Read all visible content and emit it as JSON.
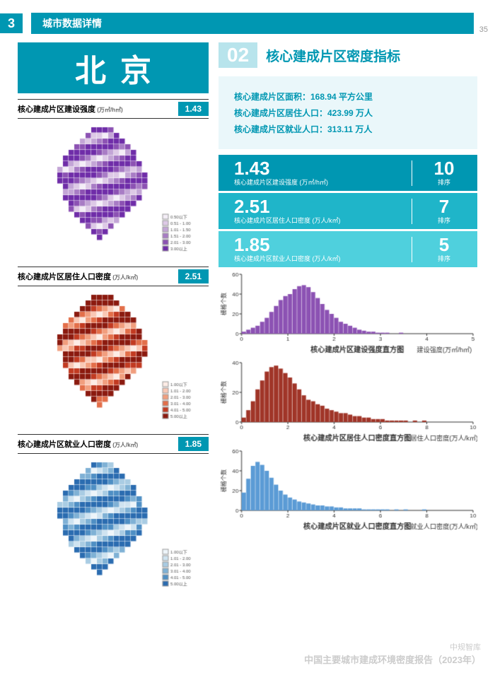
{
  "pageNumber": "35",
  "header": {
    "badge": "3",
    "title": "城市数据详情"
  },
  "cityName": "北京",
  "section": {
    "num": "02",
    "title": "核心建成片区密度指标"
  },
  "maps": [
    {
      "title": "核心建成片区建设强度",
      "unit": "(万㎡/h㎡)",
      "value": "1.43",
      "scheme": "purple",
      "legend": [
        "0.50以下",
        "0.51 - 1.00",
        "1.01 - 1.50",
        "1.51 - 2.00",
        "2.01 - 3.00",
        "3.00以上"
      ],
      "colors": [
        "#f4eef7",
        "#ddc9e6",
        "#c3a5d6",
        "#a87cc5",
        "#8c52b3",
        "#6f2da8"
      ]
    },
    {
      "title": "核心建成片区居住人口密度",
      "unit": "(万人/k㎡)",
      "value": "2.51",
      "scheme": "red",
      "legend": [
        "1.00以下",
        "1.01 - 2.00",
        "2.01 - 3.00",
        "3.01 - 4.00",
        "4.01 - 5.00",
        "5.00以上"
      ],
      "colors": [
        "#fdece5",
        "#f9c8b5",
        "#f19e7e",
        "#e36f4a",
        "#c23b22",
        "#8b1a0f"
      ]
    },
    {
      "title": "核心建成片区就业人口密度",
      "unit": "(万人/k㎡)",
      "value": "1.85",
      "scheme": "blue",
      "legend": [
        "1.00以下",
        "1.01 - 2.00",
        "2.01 - 3.00",
        "3.01 - 4.00",
        "4.01 - 5.00",
        "5.00以上"
      ],
      "colors": [
        "#eef5fa",
        "#cfe3f0",
        "#a9cce3",
        "#7fb1d5",
        "#4f8fc4",
        "#2b6cb0"
      ]
    }
  ],
  "stats": [
    "核心建成片区面积：168.94 平方公里",
    "核心建成片区居住人口：423.99 万人",
    "核心建成片区就业人口：313.11 万人"
  ],
  "metrics": [
    {
      "value": "1.43",
      "label": "核心建成片区建设强度 (万㎡/h㎡)",
      "rank": "10",
      "rankLabel": "排序"
    },
    {
      "value": "2.51",
      "label": "核心建成片区居住人口密度 (万人/k㎡)",
      "rank": "7",
      "rankLabel": "排序"
    },
    {
      "value": "1.85",
      "label": "核心建成片区就业人口密度 (万人/k㎡)",
      "rank": "5",
      "rankLabel": "排序"
    }
  ],
  "histograms": [
    {
      "title": "核心建成片区建设强度直方图",
      "xlabel": "建设强度(万㎡/h㎡)",
      "ylabel": "栅格个数",
      "color": "#8c52b3",
      "xmax": 5,
      "ymax": 60,
      "xticks": [
        0,
        1,
        2,
        3,
        4,
        5
      ],
      "yticks": [
        0,
        20,
        40,
        60
      ],
      "binW": 0.1,
      "bins": [
        2,
        4,
        6,
        8,
        12,
        16,
        22,
        28,
        34,
        38,
        40,
        45,
        48,
        49,
        47,
        42,
        36,
        30,
        24,
        20,
        16,
        12,
        10,
        8,
        6,
        4,
        3,
        2,
        2,
        1,
        1,
        1,
        0,
        0,
        1,
        0,
        0,
        0,
        0,
        0,
        0,
        0,
        0,
        0,
        0,
        0,
        0,
        0,
        0,
        0
      ]
    },
    {
      "title": "核心建成片区居住人口密度直方图",
      "xlabel": "居住人口密度(万人/k㎡)",
      "ylabel": "栅格个数",
      "color": "#a03528",
      "xmax": 10,
      "ymax": 40,
      "xticks": [
        0,
        2,
        4,
        6,
        8,
        10
      ],
      "yticks": [
        0,
        20,
        40
      ],
      "binW": 0.2,
      "bins": [
        3,
        8,
        14,
        22,
        28,
        34,
        37,
        38,
        36,
        33,
        30,
        26,
        22,
        18,
        15,
        14,
        12,
        11,
        9,
        8,
        7,
        6,
        6,
        5,
        4,
        4,
        3,
        3,
        2,
        2,
        2,
        1,
        1,
        1,
        1,
        1,
        0,
        1,
        0,
        1,
        0,
        0,
        0,
        0,
        0,
        0,
        0,
        0,
        0,
        0
      ]
    },
    {
      "title": "核心建成片区就业人口密度直方图",
      "xlabel": "就业人口密度(万人/k㎡)",
      "ylabel": "栅格个数",
      "color": "#5b9bd5",
      "xmax": 10,
      "ymax": 60,
      "xticks": [
        0,
        2,
        4,
        6,
        8,
        10
      ],
      "yticks": [
        0,
        20,
        40,
        60
      ],
      "binW": 0.2,
      "bins": [
        18,
        32,
        45,
        49,
        46,
        40,
        33,
        26,
        20,
        16,
        13,
        11,
        9,
        8,
        7,
        6,
        5,
        5,
        4,
        4,
        3,
        3,
        2,
        2,
        2,
        2,
        1,
        1,
        1,
        1,
        1,
        1,
        0,
        1,
        0,
        1,
        0,
        0,
        0,
        1,
        0,
        0,
        0,
        0,
        0,
        0,
        0,
        0,
        0,
        0
      ]
    }
  ],
  "footer": {
    "org": "中规智库",
    "title": "中国主要城市建成环境密度报告（2023年）"
  }
}
